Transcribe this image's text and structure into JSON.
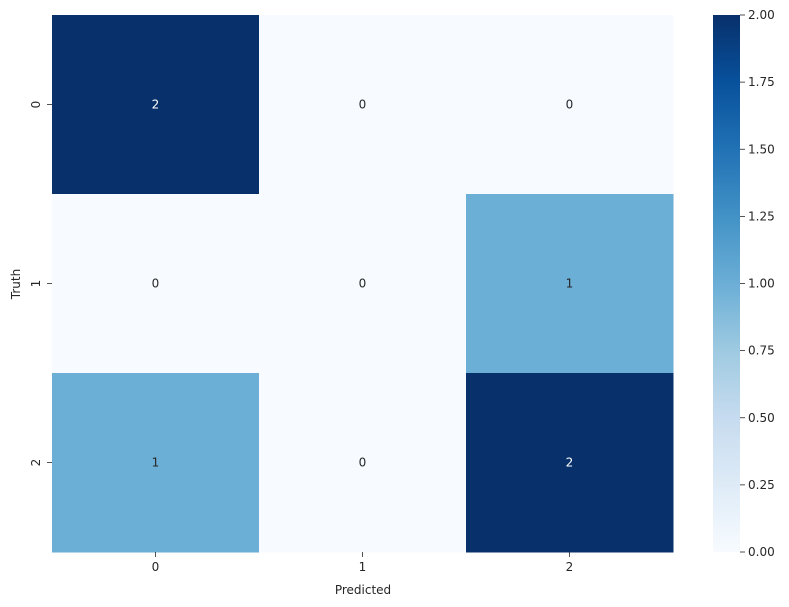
{
  "chart_data": {
    "type": "heatmap",
    "title": "",
    "xlabel": "Predicted",
    "ylabel": "Truth",
    "x_categories": [
      "0",
      "1",
      "2"
    ],
    "y_categories": [
      "0",
      "1",
      "2"
    ],
    "values": [
      [
        2,
        0,
        0
      ],
      [
        0,
        0,
        1
      ],
      [
        1,
        0,
        2
      ]
    ],
    "annotations": true,
    "colormap": "Blues",
    "color_range": [
      0,
      2
    ],
    "colorbar": {
      "ticks": [
        0.0,
        0.25,
        0.5,
        0.75,
        1.0,
        1.25,
        1.5,
        1.75,
        2.0
      ],
      "tick_labels": [
        "0.00",
        "0.25",
        "0.50",
        "0.75",
        "1.00",
        "1.25",
        "1.50",
        "1.75",
        "2.00"
      ]
    },
    "grid": false
  }
}
